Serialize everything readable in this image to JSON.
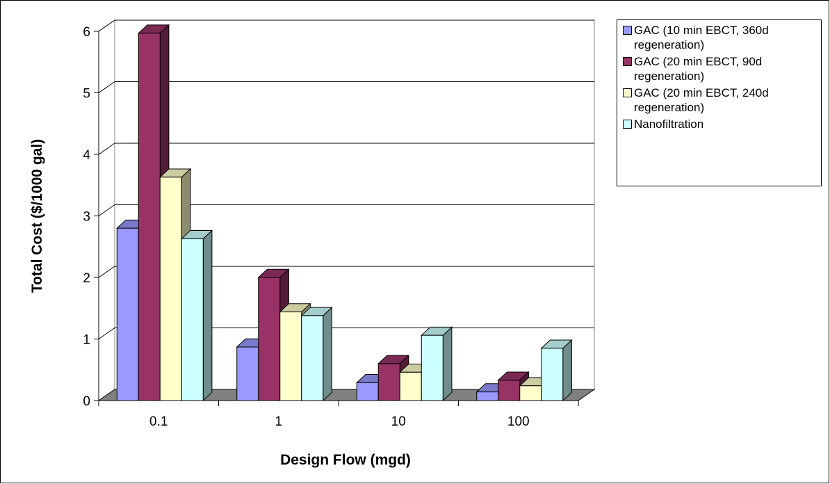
{
  "chart_data": {
    "type": "bar",
    "style": "3d-clustered-column",
    "categories": [
      "0.1",
      "1",
      "10",
      "100"
    ],
    "series": [
      {
        "name": "GAC (10 min EBCT, 360d regeneration)",
        "values": [
          2.8,
          0.87,
          0.29,
          0.14
        ],
        "color": "#9999ff"
      },
      {
        "name": "GAC (20 min EBCT, 90d regeneration)",
        "values": [
          5.97,
          2.0,
          0.6,
          0.33
        ],
        "color": "#993366"
      },
      {
        "name": "GAC (20 min EBCT, 240d regeneration)",
        "values": [
          3.63,
          1.44,
          0.46,
          0.24
        ],
        "color": "#ffffcc"
      },
      {
        "name": "Nanofiltration",
        "values": [
          2.63,
          1.38,
          1.06,
          0.85
        ],
        "color": "#ccffff"
      }
    ],
    "xlabel": "Design Flow (mgd)",
    "ylabel": "Total Cost ($/1000 gal)",
    "ylim": [
      0,
      6
    ],
    "yticks": [
      "0",
      "1",
      "2",
      "3",
      "4",
      "5",
      "6"
    ],
    "grid": true,
    "legend_position": "top-right",
    "floor_color": "#808080",
    "wall_color": "#ffffff"
  }
}
